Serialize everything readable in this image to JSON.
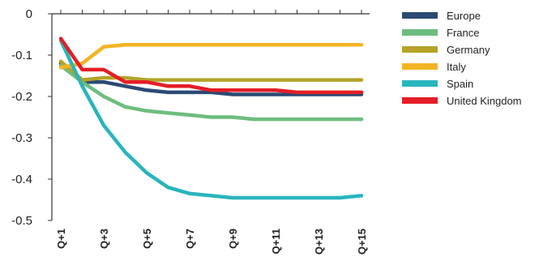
{
  "chart_data": {
    "type": "line",
    "title": "",
    "xlabel": "",
    "ylabel": "",
    "ylim": [
      -0.5,
      0
    ],
    "y_ticks": [
      0,
      -0.1,
      -0.2,
      -0.3,
      -0.4,
      -0.5
    ],
    "y_tick_labels": [
      "0",
      "-0.1",
      "-0.2",
      "-0.3",
      "-0.4",
      "-0.5"
    ],
    "x": [
      "Q+1",
      "Q+2",
      "Q+3",
      "Q+4",
      "Q+5",
      "Q+6",
      "Q+7",
      "Q+8",
      "Q+9",
      "Q+10",
      "Q+11",
      "Q+12",
      "Q+13",
      "Q+14",
      "Q+15"
    ],
    "x_tick_labels_shown": [
      "Q+1",
      "Q+3",
      "Q+5",
      "Q+7",
      "Q+9",
      "Q+11",
      "Q+13",
      "Q+15"
    ],
    "grid": false,
    "legend_position": "right",
    "series": [
      {
        "name": "Europe",
        "color": "#2b4a74",
        "values": [
          -0.12,
          -0.165,
          -0.165,
          -0.175,
          -0.185,
          -0.19,
          -0.19,
          -0.19,
          -0.195,
          -0.195,
          -0.195,
          -0.195,
          -0.195,
          -0.195,
          -0.195
        ]
      },
      {
        "name": "France",
        "color": "#6dbd7f",
        "values": [
          -0.125,
          -0.165,
          -0.2,
          -0.225,
          -0.235,
          -0.24,
          -0.245,
          -0.25,
          -0.25,
          -0.255,
          -0.255,
          -0.255,
          -0.255,
          -0.255,
          -0.255
        ]
      },
      {
        "name": "Germany",
        "color": "#b5a32a",
        "values": [
          -0.115,
          -0.16,
          -0.155,
          -0.155,
          -0.16,
          -0.16,
          -0.16,
          -0.16,
          -0.16,
          -0.16,
          -0.16,
          -0.16,
          -0.16,
          -0.16,
          -0.16
        ]
      },
      {
        "name": "Italy",
        "color": "#f2b425",
        "values": [
          -0.13,
          -0.12,
          -0.08,
          -0.075,
          -0.075,
          -0.075,
          -0.075,
          -0.075,
          -0.075,
          -0.075,
          -0.075,
          -0.075,
          -0.075,
          -0.075,
          -0.075
        ]
      },
      {
        "name": "Spain",
        "color": "#29b5bd",
        "values": [
          -0.065,
          -0.175,
          -0.27,
          -0.335,
          -0.385,
          -0.42,
          -0.435,
          -0.44,
          -0.445,
          -0.445,
          -0.445,
          -0.445,
          -0.445,
          -0.445,
          -0.44
        ]
      },
      {
        "name": "United Kingdom",
        "color": "#e41e26",
        "values": [
          -0.06,
          -0.135,
          -0.135,
          -0.165,
          -0.165,
          -0.175,
          -0.175,
          -0.185,
          -0.185,
          -0.185,
          -0.185,
          -0.19,
          -0.19,
          -0.19,
          -0.19
        ]
      }
    ]
  }
}
